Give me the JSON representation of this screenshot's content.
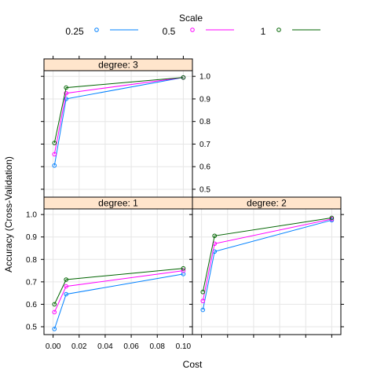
{
  "chart_data": {
    "type": "line",
    "style": "lattice-trellis",
    "xlabel": "Cost",
    "ylabel": "Accuracy (Cross-Validation)",
    "xlim": [
      -0.007,
      0.107
    ],
    "ylim": [
      0.465,
      1.025
    ],
    "x_ticks": [
      0.0,
      0.02,
      0.04,
      0.06,
      0.08,
      0.1
    ],
    "x_tick_labels": [
      "0.00",
      "0.02",
      "0.04",
      "0.06",
      "0.08",
      "0.10"
    ],
    "y_ticks": [
      0.5,
      0.6,
      0.7,
      0.8,
      0.9,
      1.0
    ],
    "y_tick_labels": [
      "0.5",
      "0.6",
      "0.7",
      "0.8",
      "0.9",
      "1.0"
    ],
    "grid": true,
    "legend": {
      "title": "Scale",
      "position": "top",
      "entries": [
        {
          "name": "0.25",
          "color": "#0080ff"
        },
        {
          "name": "0.5",
          "color": "#ff00ff"
        },
        {
          "name": "1",
          "color": "#006400"
        }
      ]
    },
    "strip_color": "#ffe5cc",
    "panels": [
      {
        "strip": "degree: 1",
        "position": "bottom-left",
        "series": [
          {
            "name": "0.25",
            "x": [
              0.001,
              0.01,
              0.1
            ],
            "y": [
              0.49,
              0.645,
              0.735
            ]
          },
          {
            "name": "0.5",
            "x": [
              0.001,
              0.01,
              0.1
            ],
            "y": [
              0.565,
              0.68,
              0.75
            ]
          },
          {
            "name": "1",
            "x": [
              0.001,
              0.01,
              0.1
            ],
            "y": [
              0.6,
              0.71,
              0.76
            ]
          }
        ]
      },
      {
        "strip": "degree: 2",
        "position": "bottom-right",
        "series": [
          {
            "name": "0.25",
            "x": [
              0.001,
              0.01,
              0.1
            ],
            "y": [
              0.575,
              0.835,
              0.975
            ]
          },
          {
            "name": "0.5",
            "x": [
              0.001,
              0.01,
              0.1
            ],
            "y": [
              0.615,
              0.87,
              0.98
            ]
          },
          {
            "name": "1",
            "x": [
              0.001,
              0.01,
              0.1
            ],
            "y": [
              0.655,
              0.905,
              0.985
            ]
          }
        ]
      },
      {
        "strip": "degree: 3",
        "position": "top-left",
        "series": [
          {
            "name": "0.25",
            "x": [
              0.001,
              0.01,
              0.1
            ],
            "y": [
              0.605,
              0.9,
              0.995
            ]
          },
          {
            "name": "0.5",
            "x": [
              0.001,
              0.01,
              0.1
            ],
            "y": [
              0.655,
              0.925,
              0.995
            ]
          },
          {
            "name": "1",
            "x": [
              0.001,
              0.01,
              0.1
            ],
            "y": [
              0.705,
              0.95,
              0.995
            ]
          }
        ]
      }
    ]
  }
}
